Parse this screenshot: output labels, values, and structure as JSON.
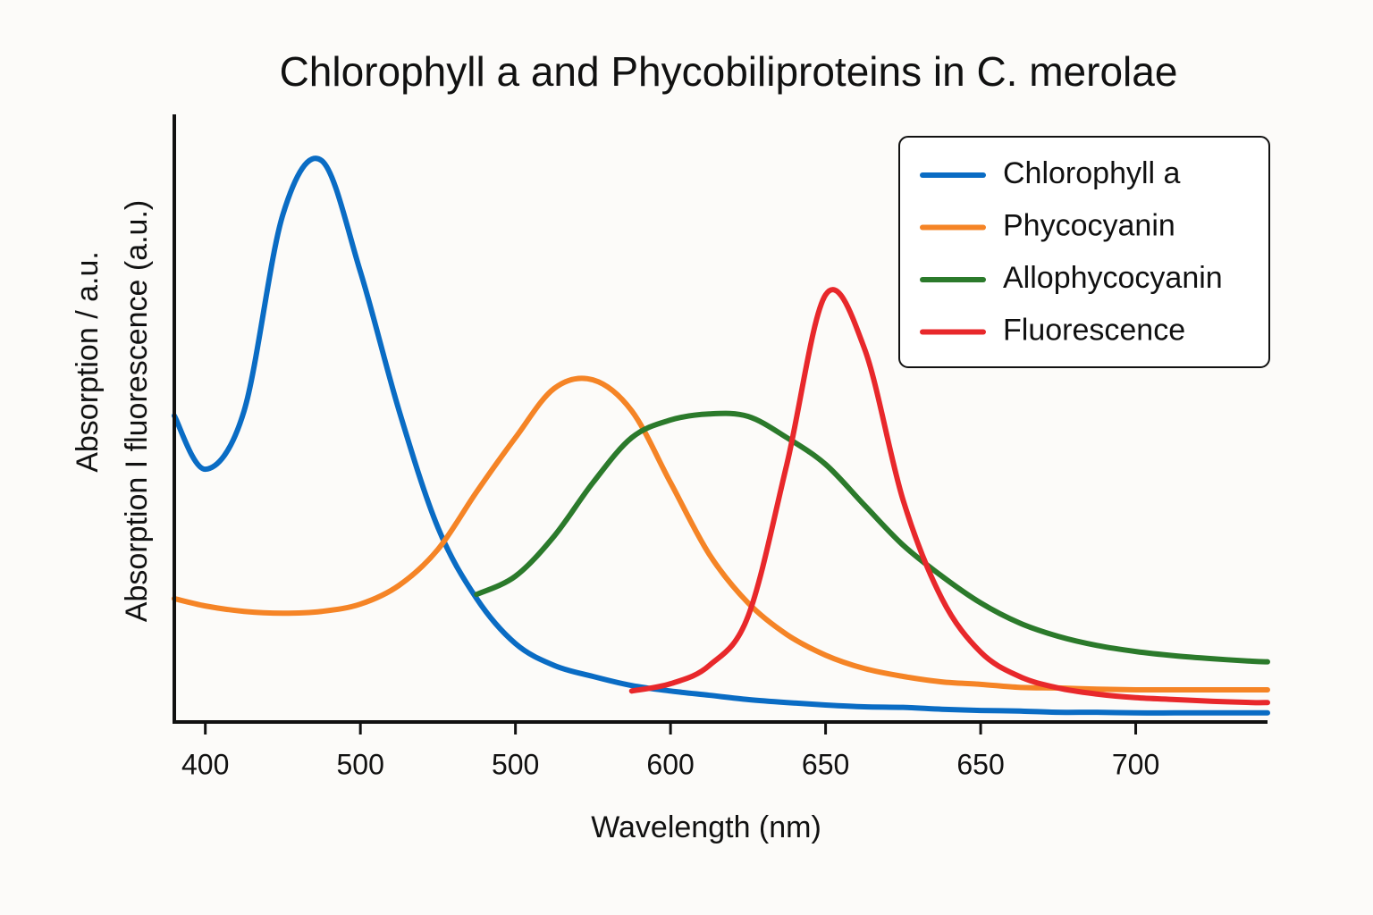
{
  "chart_data": {
    "type": "line",
    "title": "Chlorophyll a and Phycobiliproteins in C. merolae",
    "xlabel": "Wavelength (nm)",
    "ylabels": [
      "Absorption / a.u.",
      "Absorption I fluorescence (a.u.)"
    ],
    "xlim": [
      -0.2,
      6.85
    ],
    "ylim": [
      0,
      100
    ],
    "xticks": [
      {
        "value": 0,
        "label": "400"
      },
      {
        "value": 1,
        "label": "500"
      },
      {
        "value": 2,
        "label": "500"
      },
      {
        "value": 3,
        "label": "600"
      },
      {
        "value": 4,
        "label": "650"
      },
      {
        "value": 5,
        "label": "650"
      },
      {
        "value": 6,
        "label": "700"
      }
    ],
    "legend": "top-right",
    "x": [
      -0.2,
      0,
      0.25,
      0.5,
      0.75,
      1,
      1.25,
      1.5,
      1.75,
      2,
      2.25,
      2.5,
      2.75,
      3,
      3.25,
      3.5,
      3.75,
      4,
      4.25,
      4.5,
      4.75,
      5,
      5.25,
      5.5,
      5.75,
      6,
      6.25,
      6.5,
      6.75,
      6.85
    ],
    "series": [
      {
        "name": "Chlorophyll a",
        "color": "#0a6cc4",
        "values": [
          50.4,
          41.6,
          51.2,
          83.5,
          92.4,
          74.1,
          51.2,
          32.0,
          20.3,
          12.9,
          9.3,
          7.5,
          6.0,
          5.1,
          4.4,
          3.7,
          3.2,
          2.8,
          2.5,
          2.4,
          2.1,
          1.9,
          1.8,
          1.6,
          1.6,
          1.5,
          1.5,
          1.5,
          1.5,
          1.5
        ]
      },
      {
        "name": "Phycocyanin",
        "color": "#f58426",
        "values": [
          20.3,
          19.1,
          18.2,
          17.9,
          18.2,
          19.4,
          22.5,
          28.4,
          37.9,
          46.8,
          54.9,
          56.3,
          51.2,
          39.4,
          27.6,
          19.6,
          14.4,
          11.0,
          8.8,
          7.5,
          6.6,
          6.2,
          5.7,
          5.6,
          5.4,
          5.3,
          5.3,
          5.3,
          5.3,
          5.3
        ]
      },
      {
        "name": "Allophycocyanin",
        "color": "#2b7a2b",
        "values": [
          null,
          null,
          null,
          null,
          null,
          null,
          null,
          null,
          21.0,
          24.0,
          30.6,
          39.4,
          46.8,
          49.7,
          50.7,
          50.3,
          46.8,
          42.4,
          35.7,
          29.1,
          24.0,
          19.6,
          16.3,
          14.1,
          12.6,
          11.6,
          10.9,
          10.4,
          10.0,
          9.9
        ]
      },
      {
        "name": "Fluorescence",
        "color": "#e8282b",
        "values": [
          null,
          null,
          null,
          null,
          null,
          null,
          null,
          null,
          null,
          null,
          null,
          null,
          5.1,
          6.3,
          9.3,
          17.4,
          42.4,
          70.3,
          61.5,
          36.5,
          20.3,
          11.5,
          7.5,
          5.6,
          4.6,
          4.0,
          3.7,
          3.4,
          3.2,
          3.2
        ]
      }
    ]
  }
}
